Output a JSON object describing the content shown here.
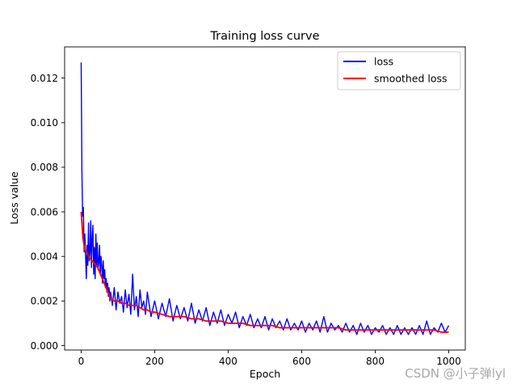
{
  "chart_data": {
    "type": "line",
    "title": "Training loss curve",
    "xlabel": "Epoch",
    "ylabel": "Loss value",
    "xlim": [
      -45,
      1045
    ],
    "ylim": [
      -0.0002,
      0.0134
    ],
    "xticks": [
      0,
      200,
      400,
      600,
      800,
      1000
    ],
    "xtick_labels": [
      "0",
      "200",
      "400",
      "600",
      "800",
      "1000"
    ],
    "yticks": [
      0.0,
      0.002,
      0.004,
      0.006,
      0.008,
      0.01,
      0.012
    ],
    "ytick_labels": [
      "0.000",
      "0.002",
      "0.004",
      "0.006",
      "0.008",
      "0.010",
      "0.012"
    ],
    "grid": false,
    "legend_position": "top-right",
    "series": [
      {
        "name": "loss",
        "color": "#0000ff",
        "x": [
          0,
          2,
          4,
          6,
          8,
          10,
          12,
          14,
          16,
          18,
          20,
          22,
          24,
          26,
          28,
          30,
          32,
          34,
          36,
          38,
          40,
          42,
          44,
          46,
          48,
          50,
          52,
          54,
          56,
          58,
          60,
          62,
          64,
          66,
          68,
          70,
          72,
          74,
          76,
          78,
          80,
          85,
          90,
          95,
          100,
          105,
          110,
          115,
          120,
          125,
          130,
          135,
          140,
          145,
          150,
          155,
          160,
          165,
          170,
          175,
          180,
          190,
          200,
          210,
          220,
          230,
          240,
          250,
          260,
          270,
          280,
          290,
          300,
          310,
          320,
          330,
          340,
          350,
          360,
          370,
          380,
          390,
          400,
          410,
          420,
          430,
          440,
          450,
          460,
          470,
          480,
          490,
          500,
          510,
          520,
          530,
          540,
          550,
          560,
          570,
          580,
          590,
          600,
          610,
          620,
          630,
          640,
          650,
          660,
          670,
          680,
          690,
          700,
          710,
          720,
          730,
          740,
          750,
          760,
          770,
          780,
          790,
          800,
          810,
          820,
          830,
          840,
          850,
          860,
          870,
          880,
          890,
          900,
          910,
          920,
          930,
          940,
          950,
          960,
          970,
          980,
          990,
          1000
        ],
        "y": [
          0.0127,
          0.0078,
          0.0058,
          0.0062,
          0.0042,
          0.005,
          0.004,
          0.003,
          0.0045,
          0.0036,
          0.0055,
          0.0038,
          0.0042,
          0.0056,
          0.0035,
          0.0048,
          0.0054,
          0.0032,
          0.0044,
          0.003,
          0.005,
          0.0036,
          0.0046,
          0.0034,
          0.0038,
          0.0045,
          0.0032,
          0.004,
          0.0036,
          0.0028,
          0.0038,
          0.003,
          0.0034,
          0.0026,
          0.003,
          0.0024,
          0.0028,
          0.0022,
          0.0026,
          0.002,
          0.0024,
          0.0018,
          0.0026,
          0.0016,
          0.0024,
          0.0019,
          0.0022,
          0.0015,
          0.0025,
          0.0017,
          0.0023,
          0.0014,
          0.0032,
          0.0016,
          0.0022,
          0.0013,
          0.0025,
          0.0017,
          0.002,
          0.0014,
          0.0024,
          0.0013,
          0.002,
          0.0012,
          0.0019,
          0.0013,
          0.0021,
          0.0011,
          0.0018,
          0.0012,
          0.0017,
          0.0011,
          0.0019,
          0.001,
          0.0016,
          0.0011,
          0.0017,
          0.0009,
          0.0015,
          0.001,
          0.0016,
          0.0009,
          0.0014,
          0.001,
          0.0015,
          0.0008,
          0.0013,
          0.0009,
          0.0014,
          0.0008,
          0.0012,
          0.0008,
          0.0013,
          0.0007,
          0.0012,
          0.0008,
          0.0011,
          0.0007,
          0.0012,
          0.0007,
          0.001,
          0.0007,
          0.0011,
          0.0006,
          0.001,
          0.0007,
          0.0011,
          0.0006,
          0.0013,
          0.0006,
          0.001,
          0.0007,
          0.0009,
          0.0006,
          0.001,
          0.0006,
          0.0009,
          0.0005,
          0.001,
          0.0006,
          0.0009,
          0.0005,
          0.0008,
          0.0006,
          0.0009,
          0.0005,
          0.0008,
          0.0005,
          0.0009,
          0.0005,
          0.0008,
          0.0005,
          0.0008,
          0.0005,
          0.0009,
          0.0005,
          0.0011,
          0.0005,
          0.0008,
          0.0006,
          0.001,
          0.0006,
          0.0009
        ]
      },
      {
        "name": "smoothed loss",
        "color": "#ff0000",
        "x": [
          0,
          5,
          10,
          15,
          20,
          25,
          30,
          35,
          40,
          45,
          50,
          55,
          60,
          65,
          70,
          75,
          80,
          90,
          100,
          110,
          120,
          130,
          140,
          150,
          160,
          170,
          180,
          190,
          200,
          220,
          240,
          260,
          280,
          300,
          320,
          340,
          360,
          380,
          400,
          420,
          440,
          460,
          480,
          500,
          520,
          540,
          560,
          580,
          600,
          620,
          640,
          660,
          680,
          700,
          720,
          740,
          760,
          780,
          800,
          820,
          840,
          860,
          880,
          900,
          920,
          940,
          960,
          980,
          1000
        ],
        "y": [
          0.006,
          0.0048,
          0.0043,
          0.0042,
          0.004,
          0.0039,
          0.0038,
          0.0037,
          0.0036,
          0.0035,
          0.0033,
          0.0031,
          0.0029,
          0.0027,
          0.0025,
          0.0023,
          0.0021,
          0.002,
          0.002,
          0.0019,
          0.0019,
          0.0018,
          0.0018,
          0.0018,
          0.0017,
          0.0016,
          0.0016,
          0.0015,
          0.0015,
          0.0014,
          0.0013,
          0.0013,
          0.0013,
          0.0012,
          0.0012,
          0.0011,
          0.0011,
          0.0011,
          0.001,
          0.001,
          0.001,
          0.0009,
          0.0009,
          0.0009,
          0.0009,
          0.0008,
          0.0008,
          0.0008,
          0.0008,
          0.0008,
          0.0008,
          0.0008,
          0.0008,
          0.0008,
          0.0007,
          0.0007,
          0.0007,
          0.0007,
          0.0007,
          0.0007,
          0.0007,
          0.0007,
          0.0007,
          0.0007,
          0.0007,
          0.0007,
          0.0007,
          0.0006,
          0.0006
        ]
      }
    ]
  },
  "watermark": "CSDN @小子弹lyl"
}
